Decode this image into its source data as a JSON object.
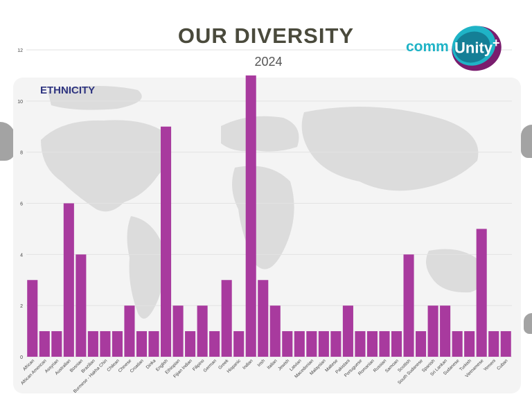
{
  "header": {
    "title": "OUR DIVERSITY",
    "year": "2024",
    "section": "ETHNICITY"
  },
  "logo": {
    "text_prefix": "comm",
    "text_box": "Unity",
    "plus": "+"
  },
  "colors": {
    "bar": "#a83a9e",
    "title": "#4a4a3c",
    "section": "#2e3480",
    "logo_teal": "#1fb3c6",
    "logo_purple": "#7a1d6e"
  },
  "chart_data": {
    "type": "bar",
    "title": "",
    "xlabel": "",
    "ylabel": "",
    "ylim": [
      0,
      12
    ],
    "yticks": [
      0,
      2,
      4,
      6,
      8,
      10,
      12
    ],
    "grid": true,
    "categories": [
      "African",
      "African American",
      "Assyrian",
      "Australian",
      "Bosnian",
      "Brazilian",
      "Burmese - Hakha Chin",
      "Chilean",
      "Chinese",
      "Croatian",
      "Dinka",
      "English",
      "Ethiopian",
      "Fijian Indian",
      "Filipino",
      "German",
      "Greek",
      "Hispanic",
      "Indian",
      "Irish",
      "Italian",
      "Jewish",
      "Latvian",
      "Macedonian",
      "Malaysian",
      "Maltese",
      "Pakistani",
      "Portuguese",
      "Romanian",
      "Russian",
      "Samoan",
      "Scottish",
      "South Sudanese",
      "Spanish",
      "Sri Lankan",
      "Sudanese",
      "Turkish",
      "Vietnamese",
      "Yemeni",
      "Cuban"
    ],
    "values": [
      3,
      1,
      1,
      6,
      4,
      1,
      1,
      1,
      2,
      1,
      1,
      9,
      2,
      1,
      2,
      1,
      3,
      1,
      11,
      3,
      2,
      1,
      1,
      1,
      1,
      1,
      2,
      1,
      1,
      1,
      1,
      4,
      1,
      2,
      2,
      1,
      1,
      5,
      1,
      1
    ]
  }
}
